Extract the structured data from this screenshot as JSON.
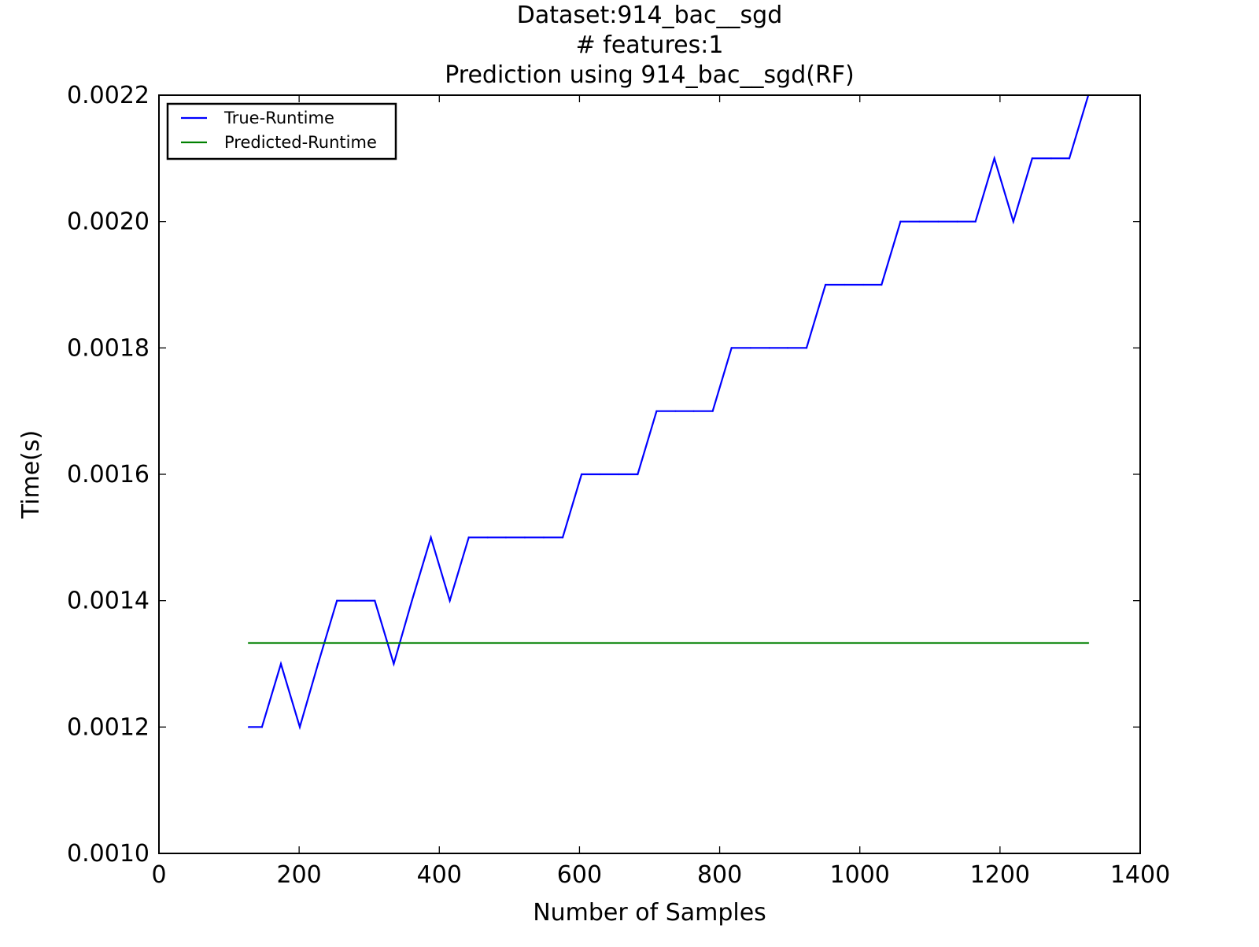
{
  "chart_data": {
    "type": "line",
    "title_lines": [
      "Dataset:914_bac__sgd",
      "# features:1",
      "Prediction using 914_bac__sgd(RF)"
    ],
    "xlabel": "Number of Samples",
    "ylabel": "Time(s)",
    "xlim": [
      0,
      1400
    ],
    "ylim": [
      0.001,
      0.0022
    ],
    "x_ticks": [
      0,
      200,
      400,
      600,
      800,
      1000,
      1200,
      1400
    ],
    "y_ticks": [
      0.001,
      0.0012,
      0.0014,
      0.0016,
      0.0018,
      0.002,
      0.0022
    ],
    "x_tick_labels": [
      "0",
      "200",
      "400",
      "600",
      "800",
      "1000",
      "1200",
      "1400"
    ],
    "y_tick_labels": [
      "0.0010",
      "0.0012",
      "0.0014",
      "0.0016",
      "0.0018",
      "0.0020",
      "0.0022"
    ],
    "grid": false,
    "legend_position": "upper-left",
    "legend_labels": [
      "True-Runtime",
      "Predicted-Runtime"
    ],
    "series": [
      {
        "name": "True-Runtime",
        "color": "#0000ff",
        "x": [
          128,
          147,
          174,
          201,
          227,
          254,
          281,
          308,
          335,
          361,
          388,
          415,
          442,
          469,
          495,
          522,
          549,
          576,
          603,
          629,
          656,
          683,
          710,
          737,
          763,
          790,
          817,
          844,
          871,
          897,
          924,
          951,
          978,
          1005,
          1031,
          1058,
          1085,
          1112,
          1139,
          1165,
          1192,
          1219,
          1246,
          1273,
          1299,
          1326
        ],
        "y": [
          0.0012,
          0.0012,
          0.0013,
          0.0012,
          0.0013,
          0.0014,
          0.0014,
          0.0014,
          0.0013,
          0.0014,
          0.0015,
          0.0014,
          0.0015,
          0.0015,
          0.0015,
          0.0015,
          0.0015,
          0.0015,
          0.0016,
          0.0016,
          0.0016,
          0.0016,
          0.0017,
          0.0017,
          0.0017,
          0.0017,
          0.0018,
          0.0018,
          0.0018,
          0.0018,
          0.0018,
          0.0019,
          0.0019,
          0.0019,
          0.0019,
          0.002,
          0.002,
          0.002,
          0.002,
          0.002,
          0.0021,
          0.002,
          0.0021,
          0.0021,
          0.0021,
          0.0022
        ]
      },
      {
        "name": "Predicted-Runtime",
        "color": "#008000",
        "x": [
          128,
          1326
        ],
        "y": [
          0.001333,
          0.001333
        ]
      }
    ]
  }
}
